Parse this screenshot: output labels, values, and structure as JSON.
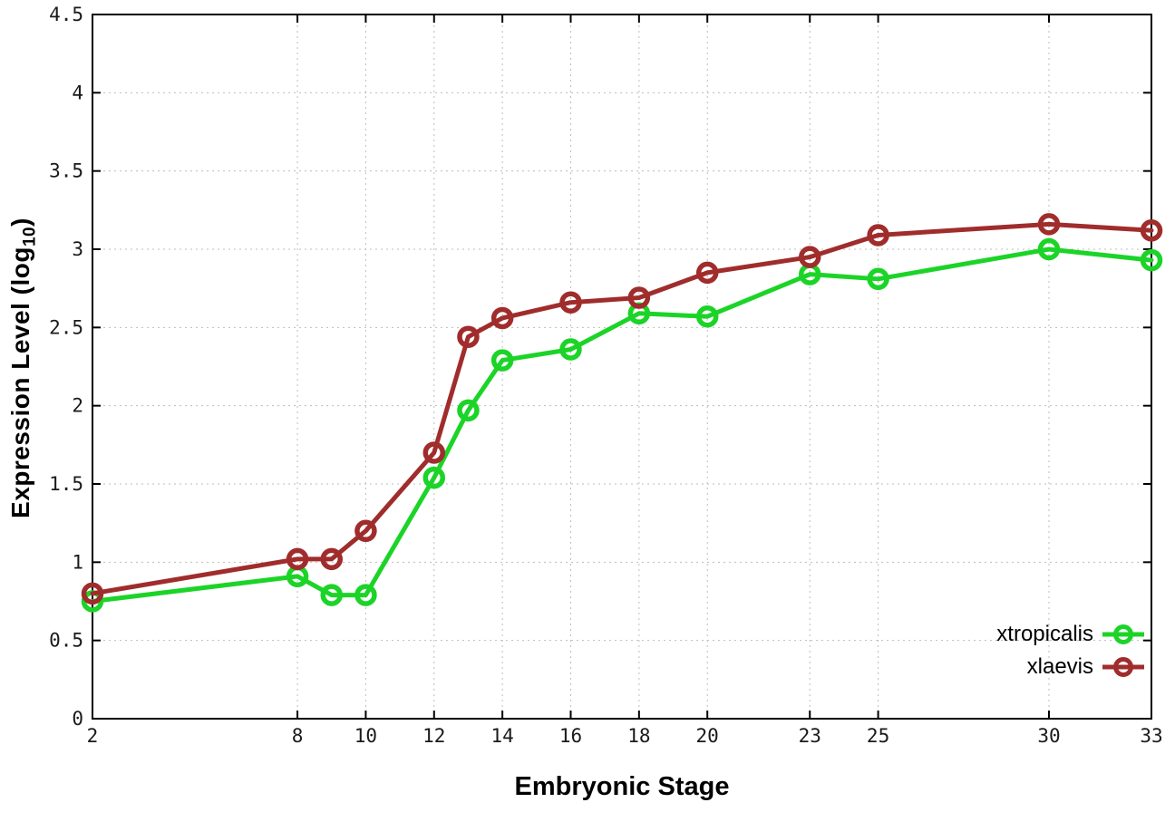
{
  "chart_data": {
    "type": "line",
    "title": "",
    "xlabel": "Embryonic Stage",
    "ylabel_main": "Expression Level (log",
    "ylabel_sub": "10",
    "ylabel_end": ")",
    "xlim": [
      2,
      33
    ],
    "ylim": [
      0,
      4.5
    ],
    "grid": true,
    "legend_position": "inside-right-lower",
    "x": [
      2,
      8,
      9,
      10,
      12,
      13,
      14,
      16,
      18,
      20,
      23,
      25,
      30,
      33
    ],
    "x_ticks": [
      2,
      8,
      10,
      12,
      14,
      16,
      18,
      20,
      23,
      25,
      30,
      33
    ],
    "x_tick_labels": [
      "2",
      "8",
      "10",
      "12",
      "14",
      "16",
      "18",
      "20",
      "23",
      "25",
      "30",
      "33"
    ],
    "y_ticks": [
      0,
      0.5,
      1,
      1.5,
      2,
      2.5,
      3,
      3.5,
      4,
      4.5
    ],
    "y_tick_labels": [
      "0",
      "0.5",
      "1",
      "1.5",
      "2",
      "2.5",
      "3",
      "3.5",
      "4",
      "4.5"
    ],
    "series": [
      {
        "name": "xtropicalis",
        "color": "#1bd427",
        "marker": "open-circle",
        "values": [
          0.75,
          0.91,
          0.79,
          0.79,
          1.54,
          1.97,
          2.29,
          2.36,
          2.59,
          2.57,
          2.84,
          2.81,
          3.0,
          2.93
        ]
      },
      {
        "name": "xlaevis",
        "color": "#a02c2c",
        "marker": "open-circle",
        "values": [
          0.8,
          1.02,
          1.02,
          1.2,
          1.7,
          2.44,
          2.56,
          2.66,
          2.69,
          2.85,
          2.95,
          3.09,
          3.16,
          3.12
        ]
      }
    ],
    "colors": {
      "background": "#ffffff",
      "border": "#000000",
      "grid": "#bdbdbd",
      "tick": "#000000",
      "text": "#000000"
    }
  }
}
